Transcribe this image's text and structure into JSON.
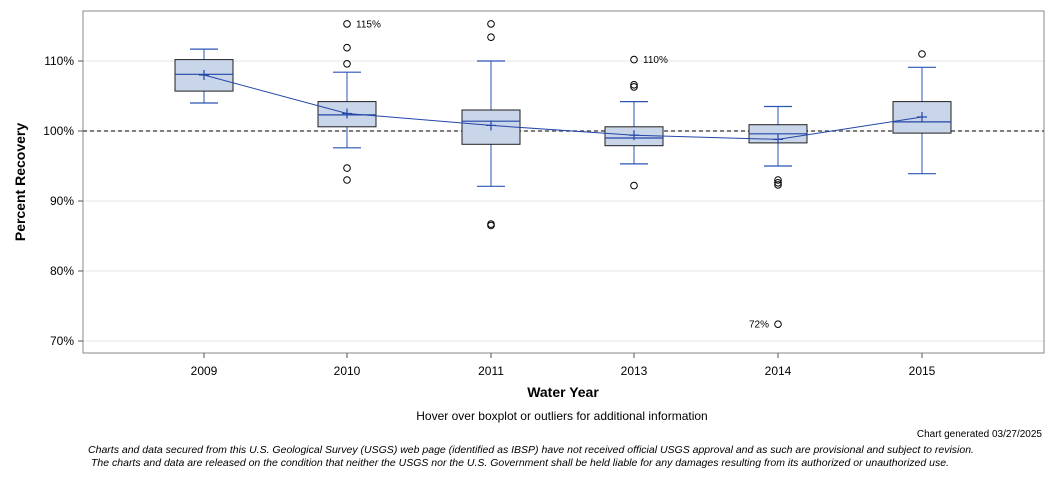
{
  "chart_data": {
    "type": "boxplot",
    "title": "",
    "xlabel": "Water Year",
    "ylabel": "Percent Recovery",
    "ylim": [
      68,
      117
    ],
    "yticks": [
      70,
      80,
      90,
      100,
      110
    ],
    "ytick_labels": [
      "70%",
      "80%",
      "90%",
      "100%",
      "110%"
    ],
    "reference_line": 100,
    "categories": [
      "2009",
      "2010",
      "2011",
      "2013",
      "2014",
      "2015"
    ],
    "boxes": [
      {
        "category": "2009",
        "whisker_low": 104.0,
        "q1": 105.7,
        "median": 108.1,
        "q3": 110.2,
        "whisker_high": 111.7,
        "mean": 108.0,
        "outliers": []
      },
      {
        "category": "2010",
        "whisker_low": 97.6,
        "q1": 100.6,
        "median": 102.3,
        "q3": 104.2,
        "whisker_high": 108.4,
        "mean": 102.5,
        "outliers": [
          93.0,
          94.7,
          109.6,
          111.9,
          115.3
        ]
      },
      {
        "category": "2011",
        "whisker_low": 92.1,
        "q1": 98.1,
        "median": 101.4,
        "q3": 103.0,
        "whisker_high": 110.0,
        "mean": 100.8,
        "outliers": [
          86.5,
          86.7,
          113.4,
          115.3
        ]
      },
      {
        "category": "2013",
        "whisker_low": 95.3,
        "q1": 97.9,
        "median": 99.0,
        "q3": 100.6,
        "whisker_high": 104.2,
        "mean": 99.4,
        "outliers": [
          92.2,
          106.3,
          106.6,
          110.2
        ]
      },
      {
        "category": "2014",
        "whisker_low": 95.0,
        "q1": 98.3,
        "median": 99.6,
        "q3": 100.9,
        "whisker_high": 103.5,
        "mean": 98.8,
        "outliers": [
          72.4,
          92.3,
          92.6,
          93.0
        ]
      },
      {
        "category": "2015",
        "whisker_low": 93.9,
        "q1": 99.7,
        "median": 101.3,
        "q3": 104.2,
        "whisker_high": 109.1,
        "mean": 102.0,
        "outliers": [
          111.0
        ]
      }
    ],
    "outlier_labels": [
      {
        "category": "2010",
        "value": 115.3,
        "text": "115%",
        "side": "right"
      },
      {
        "category": "2013",
        "value": 110.2,
        "text": "110%",
        "side": "right"
      },
      {
        "category": "2014",
        "value": 72.4,
        "text": "72%",
        "side": "left"
      }
    ],
    "colors": {
      "box_fill": "#c9d5e8",
      "box_edge": "#1f1f1f",
      "whisker": "#2b55b3",
      "median_line": "#2446a8",
      "mean_marker": "#2446a8",
      "outlier": "#000000",
      "reference_line": "#555555",
      "gridline": "#e6e6e6",
      "frame": "#888888"
    }
  },
  "footer": {
    "hover_note": "Hover over boxplot or outliers for additional information",
    "generated": "Chart generated 03/27/2025",
    "disclaimer_line1": "Charts and data secured from this U.S. Geological Survey (USGS) web page (identified as IBSP) have not received official USGS approval and as such are provisional and subject to revision.",
    "disclaimer_line2": "The charts and data are released on the condition that neither the USGS nor the U.S. Government shall be held liable for any damages resulting from its authorized or unauthorized use."
  }
}
